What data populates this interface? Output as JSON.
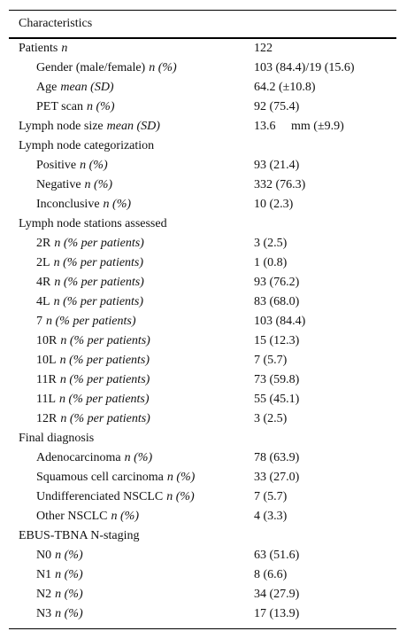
{
  "table": {
    "header": "Characteristics",
    "rows": [
      {
        "label": "Patients",
        "unit": "n",
        "value": "122",
        "indent": false
      },
      {
        "label": "Gender (male/female)",
        "unit": "n (%)",
        "value": "103 (84.4)/19 (15.6)",
        "indent": true
      },
      {
        "label": "Age",
        "unit": "mean (SD)",
        "value": "64.2 (±10.8)",
        "indent": true
      },
      {
        "label": "PET scan",
        "unit": "n (%)",
        "value": "92 (75.4)",
        "indent": true
      },
      {
        "label": "Lymph node size",
        "unit": "mean (SD)",
        "value": "13.6     mm (±9.9)",
        "indent": false
      },
      {
        "label": "Lymph node categorization",
        "indent": false
      },
      {
        "label": "Positive",
        "unit": "n (%)",
        "value": "93 (21.4)",
        "indent": true
      },
      {
        "label": "Negative",
        "unit": "n (%)",
        "value": "332 (76.3)",
        "indent": true
      },
      {
        "label": "Inconclusive",
        "unit": "n (%)",
        "value": "10 (2.3)",
        "indent": true
      },
      {
        "label": "Lymph node stations assessed",
        "indent": false
      },
      {
        "label": "2R",
        "unit": "n (% per patients)",
        "value": "3 (2.5)",
        "indent": true
      },
      {
        "label": "2L",
        "unit": "n (% per patients)",
        "value": "1 (0.8)",
        "indent": true
      },
      {
        "label": "4R",
        "unit": "n (% per patients)",
        "value": "93 (76.2)",
        "indent": true
      },
      {
        "label": "4L",
        "unit": "n (% per patients)",
        "value": "83 (68.0)",
        "indent": true
      },
      {
        "label": "7",
        "unit": "n (% per patients)",
        "value": "103 (84.4)",
        "indent": true
      },
      {
        "label": "10R",
        "unit": "n (% per patients)",
        "value": "15 (12.3)",
        "indent": true
      },
      {
        "label": "10L",
        "unit": "n (% per patients)",
        "value": "7 (5.7)",
        "indent": true
      },
      {
        "label": "11R",
        "unit": "n (% per patients)",
        "value": "73 (59.8)",
        "indent": true
      },
      {
        "label": "11L",
        "unit": "n (% per patients)",
        "value": "55 (45.1)",
        "indent": true
      },
      {
        "label": "12R",
        "unit": "n (% per patients)",
        "value": "3 (2.5)",
        "indent": true
      },
      {
        "label": "Final diagnosis",
        "indent": false
      },
      {
        "label": "Adenocarcinoma",
        "unit": "n (%)",
        "value": "78 (63.9)",
        "indent": true
      },
      {
        "label": "Squamous cell carcinoma",
        "unit": "n (%)",
        "value": "33 (27.0)",
        "indent": true
      },
      {
        "label": "Undifferenciated NSCLC",
        "unit": "n (%)",
        "value": "7 (5.7)",
        "indent": true
      },
      {
        "label": "Other NSCLC",
        "unit": "n (%)",
        "value": "4 (3.3)",
        "indent": true
      },
      {
        "label": "EBUS-TBNA N-staging",
        "indent": false
      },
      {
        "label": "N0",
        "unit": "n (%)",
        "value": "63 (51.6)",
        "indent": true
      },
      {
        "label": "N1",
        "unit": "n (%)",
        "value": "8 (6.6)",
        "indent": true
      },
      {
        "label": "N2",
        "unit": "n (%)",
        "value": "34 (27.9)",
        "indent": true
      },
      {
        "label": "N3",
        "unit": "n (%)",
        "value": "17 (13.9)",
        "indent": true
      }
    ]
  }
}
